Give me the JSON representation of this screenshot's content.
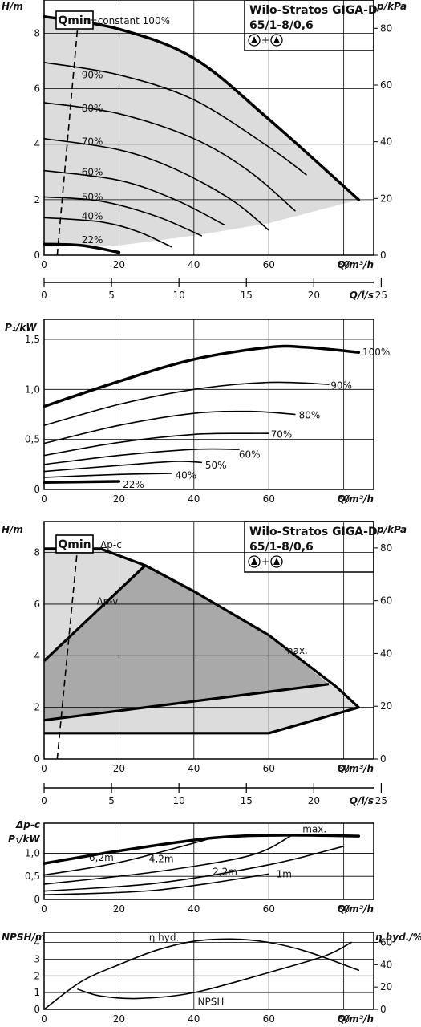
{
  "chart_data": [
    {
      "id": "hq1",
      "type": "line",
      "title_lines": [
        "Wilo-Stratos GIGA-D",
        "65/1-8/0,6"
      ],
      "title_symbol": "+",
      "xlabel": "Q/m³/h",
      "ylabel": "H/m",
      "y2label": "p/kPa",
      "xlim": [
        0,
        88
      ],
      "ylim": [
        0,
        9.2
      ],
      "y2lim": [
        0,
        90
      ],
      "x_ticks": [
        0,
        20,
        40,
        60,
        80
      ],
      "y_ticks": [
        0,
        2,
        4,
        6,
        8
      ],
      "y2_ticks": [
        0,
        20,
        40,
        60,
        80
      ],
      "qmin_label": "Qmin",
      "qmin_line": [
        [
          3.5,
          0
        ],
        [
          9,
          8.3
        ]
      ],
      "area": [
        [
          0,
          8.6
        ],
        [
          20,
          8.2
        ],
        [
          40,
          7.2
        ],
        [
          60,
          5
        ],
        [
          84,
          2
        ],
        [
          60,
          1.15
        ],
        [
          40,
          0.7
        ],
        [
          20,
          0.35
        ],
        [
          0,
          0.3
        ]
      ],
      "series": [
        {
          "name": "n=constant 100%",
          "label": "n=constant 100%",
          "bold": true,
          "points": [
            [
              0,
              8.6
            ],
            [
              20,
              8.15
            ],
            [
              40,
              7.1
            ],
            [
              60,
              4.9
            ],
            [
              84,
              2
            ]
          ]
        },
        {
          "label": "90%",
          "points": [
            [
              0,
              6.95
            ],
            [
              20,
              6.5
            ],
            [
              40,
              5.6
            ],
            [
              60,
              3.9
            ],
            [
              70,
              2.9
            ]
          ]
        },
        {
          "label": "80%",
          "points": [
            [
              0,
              5.5
            ],
            [
              20,
              5.1
            ],
            [
              40,
              4.2
            ],
            [
              55,
              3
            ],
            [
              67,
              1.6
            ]
          ]
        },
        {
          "label": "70%",
          "points": [
            [
              0,
              4.2
            ],
            [
              20,
              3.8
            ],
            [
              35,
              3.1
            ],
            [
              50,
              2
            ],
            [
              60,
              0.9
            ]
          ]
        },
        {
          "label": "60%",
          "points": [
            [
              0,
              3.05
            ],
            [
              20,
              2.7
            ],
            [
              35,
              2
            ],
            [
              48,
              1.1
            ]
          ]
        },
        {
          "label": "50%",
          "points": [
            [
              0,
              2.1
            ],
            [
              15,
              1.95
            ],
            [
              30,
              1.4
            ],
            [
              42,
              0.7
            ]
          ]
        },
        {
          "label": "40%",
          "points": [
            [
              0,
              1.35
            ],
            [
              15,
              1.2
            ],
            [
              25,
              0.85
            ],
            [
              34,
              0.3
            ]
          ]
        },
        {
          "label": "22%",
          "bold": true,
          "points": [
            [
              0,
              0.4
            ],
            [
              10,
              0.35
            ],
            [
              20,
              0.1
            ]
          ]
        }
      ],
      "curve_labels": [
        {
          "text": "90%",
          "at": [
            10,
            6.5
          ]
        },
        {
          "text": "80%",
          "at": [
            10,
            5.3
          ]
        },
        {
          "text": "70%",
          "at": [
            10,
            4.1
          ]
        },
        {
          "text": "60%",
          "at": [
            10,
            3
          ]
        },
        {
          "text": "50%",
          "at": [
            10,
            2.1
          ]
        },
        {
          "text": "40%",
          "at": [
            10,
            1.4
          ]
        },
        {
          "text": "22%",
          "at": [
            10,
            0.55
          ]
        }
      ]
    },
    {
      "id": "qls1",
      "type": "axis",
      "xlabel": "Q/l/s",
      "xlim": [
        0,
        24.44
      ],
      "x_ticks": [
        0,
        5,
        10,
        15,
        20,
        25
      ]
    },
    {
      "id": "p1a",
      "type": "line",
      "ylabel": "P₁/kW",
      "xlabel": "Q/m³/h",
      "xlim": [
        0,
        88
      ],
      "ylim": [
        0,
        1.7
      ],
      "x_ticks": [
        0,
        20,
        40,
        60,
        80
      ],
      "y_ticks": [
        0,
        0.5,
        1.0,
        1.5
      ],
      "y_tick_labels": [
        "0",
        "0,5",
        "1,0",
        "1,5"
      ],
      "series": [
        {
          "label": "100%",
          "bold": true,
          "points": [
            [
              0,
              0.83
            ],
            [
              20,
              1.08
            ],
            [
              40,
              1.3
            ],
            [
              60,
              1.42
            ],
            [
              70,
              1.42
            ],
            [
              84,
              1.37
            ]
          ]
        },
        {
          "label": "90%",
          "points": [
            [
              0,
              0.64
            ],
            [
              20,
              0.85
            ],
            [
              40,
              1.0
            ],
            [
              60,
              1.07
            ],
            [
              76,
              1.05
            ]
          ]
        },
        {
          "label": "80%",
          "points": [
            [
              0,
              0.46
            ],
            [
              20,
              0.64
            ],
            [
              40,
              0.76
            ],
            [
              55,
              0.78
            ],
            [
              67,
              0.75
            ]
          ]
        },
        {
          "label": "70%",
          "points": [
            [
              0,
              0.34
            ],
            [
              20,
              0.47
            ],
            [
              40,
              0.55
            ],
            [
              55,
              0.56
            ],
            [
              60,
              0.56
            ]
          ]
        },
        {
          "label": "60%",
          "points": [
            [
              0,
              0.25
            ],
            [
              20,
              0.34
            ],
            [
              40,
              0.4
            ],
            [
              52,
              0.4
            ]
          ]
        },
        {
          "label": "50%",
          "points": [
            [
              0,
              0.18
            ],
            [
              20,
              0.24
            ],
            [
              35,
              0.28
            ],
            [
              42,
              0.27
            ]
          ]
        },
        {
          "label": "40%",
          "points": [
            [
              0,
              0.12
            ],
            [
              20,
              0.15
            ],
            [
              34,
              0.16
            ]
          ]
        },
        {
          "label": "22%",
          "bold": true,
          "points": [
            [
              0,
              0.07
            ],
            [
              20,
              0.08
            ]
          ]
        }
      ],
      "curve_labels": [
        {
          "text": "100%",
          "at": [
            85,
            1.37
          ]
        },
        {
          "text": "90%",
          "at": [
            76.5,
            1.04
          ]
        },
        {
          "text": "80%",
          "at": [
            68,
            0.74
          ]
        },
        {
          "text": "70%",
          "at": [
            60.5,
            0.55
          ]
        },
        {
          "text": "60%",
          "at": [
            52,
            0.35
          ]
        },
        {
          "text": "50%",
          "at": [
            43,
            0.24
          ]
        },
        {
          "text": "40%",
          "at": [
            35,
            0.14
          ]
        },
        {
          "text": "22%",
          "at": [
            21,
            0.05
          ]
        }
      ]
    },
    {
      "id": "hq2",
      "type": "area",
      "title_lines": [
        "Wilo-Stratos GIGA-D",
        "65/1-8/0,6"
      ],
      "title_symbol": "+",
      "xlabel": "Q/m³/h",
      "ylabel": "H/m",
      "y2label": "p/kPa",
      "xlim": [
        0,
        88
      ],
      "ylim": [
        0,
        9.2
      ],
      "y2lim": [
        0,
        90
      ],
      "x_ticks": [
        0,
        20,
        40,
        60,
        80
      ],
      "y_ticks": [
        0,
        2,
        4,
        6,
        8
      ],
      "y2_ticks": [
        0,
        20,
        40,
        60,
        80
      ],
      "qmin_label": "Qmin",
      "qmin_line": [
        [
          3.5,
          0
        ],
        [
          9,
          8.3
        ]
      ],
      "light_area": [
        [
          0,
          8.15
        ],
        [
          15,
          8.15
        ],
        [
          27,
          7.5
        ],
        [
          40,
          6.5
        ],
        [
          60,
          4.8
        ],
        [
          78,
          2.8
        ],
        [
          84,
          2
        ],
        [
          60,
          1
        ],
        [
          0,
          1
        ]
      ],
      "dark_area": [
        [
          0,
          1.5
        ],
        [
          76,
          2.9
        ],
        [
          60,
          4.8
        ],
        [
          40,
          6.5
        ],
        [
          27,
          7.5
        ],
        [
          0,
          3.8
        ]
      ],
      "lines": [
        {
          "points": [
            [
              0,
              8.15
            ],
            [
              15,
              8.15
            ],
            [
              27,
              7.5
            ],
            [
              40,
              6.5
            ],
            [
              60,
              4.8
            ],
            [
              78,
              2.8
            ],
            [
              84,
              2
            ],
            [
              60,
              1
            ],
            [
              0,
              1
            ]
          ]
        },
        {
          "points": [
            [
              0,
              3.8
            ],
            [
              27,
              7.5
            ]
          ]
        },
        {
          "points": [
            [
              0,
              1.5
            ],
            [
              76,
              2.9
            ]
          ]
        }
      ],
      "curve_labels": [
        {
          "text": "Δp-c",
          "at": [
            15,
            8.3
          ]
        },
        {
          "text": "Δp-v",
          "at": [
            14,
            6.1
          ]
        },
        {
          "text": "max.",
          "at": [
            64,
            4.2
          ]
        }
      ]
    },
    {
      "id": "qls2",
      "type": "axis",
      "xlabel": "Q/l/s",
      "xlim": [
        0,
        24.44
      ],
      "x_ticks": [
        0,
        5,
        10,
        15,
        20,
        25
      ]
    },
    {
      "id": "p1b",
      "type": "line",
      "ylabel_lines": [
        "Δp-c",
        "P₁/kW"
      ],
      "xlabel": "Q/m³/h",
      "xlim": [
        0,
        88
      ],
      "ylim": [
        0,
        1.65
      ],
      "x_ticks": [
        0,
        20,
        40,
        60,
        80
      ],
      "y_ticks": [
        0,
        0.5,
        1.0
      ],
      "y_tick_labels": [
        "0",
        "0,5",
        "1,0"
      ],
      "series": [
        {
          "label": "max.",
          "bold": true,
          "points": [
            [
              0,
              0.78
            ],
            [
              20,
              1.05
            ],
            [
              45,
              1.33
            ],
            [
              63,
              1.39
            ],
            [
              84,
              1.37
            ]
          ]
        },
        {
          "label": "6,2m",
          "points": [
            [
              0,
              0.53
            ],
            [
              20,
              0.8
            ],
            [
              45,
              1.33
            ]
          ]
        },
        {
          "label": "4,2m",
          "points": [
            [
              0,
              0.33
            ],
            [
              30,
              0.6
            ],
            [
              55,
              0.95
            ],
            [
              66,
              1.38
            ]
          ]
        },
        {
          "label": "2,2m",
          "points": [
            [
              0,
              0.18
            ],
            [
              30,
              0.35
            ],
            [
              60,
              0.75
            ],
            [
              80,
              1.15
            ]
          ]
        },
        {
          "label": "1m",
          "points": [
            [
              0,
              0.1
            ],
            [
              30,
              0.2
            ],
            [
              60,
              0.55
            ]
          ]
        }
      ],
      "curve_labels": [
        {
          "text": "max.",
          "at": [
            69,
            1.52
          ]
        },
        {
          "text": "6,2m",
          "at": [
            12,
            0.9
          ]
        },
        {
          "text": "4,2m",
          "at": [
            28,
            0.88
          ]
        },
        {
          "text": "2,2m",
          "at": [
            45,
            0.6
          ]
        },
        {
          "text": "1m",
          "at": [
            62,
            0.55
          ]
        }
      ]
    },
    {
      "id": "npsh",
      "type": "line",
      "ylabel": "NPSH/m",
      "y2label": "η hyd./%",
      "xlabel": "Q/m³/h",
      "xlim": [
        0,
        88
      ],
      "ylim": [
        0,
        4.6
      ],
      "y2lim": [
        0,
        69
      ],
      "x_ticks": [
        0,
        20,
        40,
        60,
        80
      ],
      "y_ticks": [
        0,
        1,
        2,
        3,
        4
      ],
      "y2_ticks": [
        0,
        20,
        40,
        60
      ],
      "series": [
        {
          "label": "η hyd.",
          "axis": "y2",
          "points": [
            [
              0,
              0
            ],
            [
              10,
              25
            ],
            [
              20,
              40
            ],
            [
              30,
              53
            ],
            [
              40,
              61
            ],
            [
              50,
              63
            ],
            [
              60,
              60
            ],
            [
              70,
              52
            ],
            [
              84,
              35
            ]
          ]
        },
        {
          "label": "NPSH",
          "axis": "y",
          "points": [
            [
              9,
              1.2
            ],
            [
              15,
              0.8
            ],
            [
              25,
              0.65
            ],
            [
              40,
              1.0
            ],
            [
              60,
              2.2
            ],
            [
              75,
              3.2
            ],
            [
              82,
              4.0
            ]
          ]
        }
      ],
      "curve_labels": [
        {
          "text": "η hyd.",
          "at": [
            28,
            4.3
          ]
        },
        {
          "text": "NPSH",
          "at": [
            41,
            0.45
          ]
        }
      ]
    }
  ]
}
